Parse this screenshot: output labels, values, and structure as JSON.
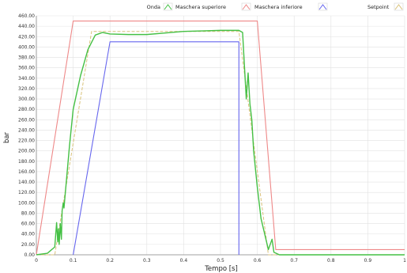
{
  "chart_data": {
    "type": "line",
    "xlabel": "Tempo [s]",
    "ylabel": "bar",
    "xlim": [
      0,
      1
    ],
    "ylim": [
      0,
      460
    ],
    "x_ticks": [
      "0",
      "0.1",
      "0.2",
      "0.3",
      "0.4",
      "0.5",
      "0.6",
      "0.7",
      "0.8",
      "0.9",
      "1"
    ],
    "y_ticks": [
      "0.00",
      "20.00",
      "40.00",
      "60.00",
      "80.00",
      "100.00",
      "120.00",
      "140.00",
      "160.00",
      "180.00",
      "200.00",
      "220.00",
      "240.00",
      "260.00",
      "280.00",
      "300.00",
      "320.00",
      "340.00",
      "360.00",
      "380.00",
      "400.00",
      "420.00",
      "440.00",
      "460.00"
    ],
    "grid": true,
    "legend_position": "top-right",
    "legend_title": "Onda",
    "series": [
      {
        "name": "Maschera superiore",
        "color": "#ee8888",
        "x": [
          0,
          0.1,
          0.6,
          0.65,
          1.0
        ],
        "y": [
          0,
          450,
          450,
          10,
          10
        ]
      },
      {
        "name": "Maschera inferiore",
        "color": "#6666ee",
        "x": [
          0.1,
          0.2,
          0.55,
          0.55
        ],
        "y": [
          0,
          410,
          410,
          0
        ]
      },
      {
        "name": "Setpoint",
        "color": "#d9c27a",
        "x": [
          0,
          0.05,
          0.15,
          0.55,
          0.63,
          1.0
        ],
        "y": [
          0,
          0,
          430,
          430,
          0,
          0
        ]
      },
      {
        "name": "",
        "color": "#44c044",
        "x": [
          0,
          0.03,
          0.05,
          0.055,
          0.058,
          0.06,
          0.062,
          0.065,
          0.068,
          0.07,
          0.073,
          0.075,
          0.08,
          0.09,
          0.1,
          0.12,
          0.14,
          0.16,
          0.18,
          0.2,
          0.25,
          0.3,
          0.35,
          0.4,
          0.45,
          0.5,
          0.55,
          0.56,
          0.57,
          0.575,
          0.58,
          0.585,
          0.59,
          0.6,
          0.61,
          0.62,
          0.63,
          0.64,
          0.645,
          0.66,
          0.7,
          0.8,
          0.9,
          1.0
        ],
        "y": [
          0,
          3,
          15,
          62,
          25,
          50,
          20,
          60,
          30,
          85,
          100,
          90,
          130,
          210,
          280,
          345,
          395,
          423,
          428,
          425,
          424,
          424,
          427,
          430,
          431,
          432,
          432,
          428,
          300,
          350,
          290,
          260,
          200,
          130,
          70,
          40,
          10,
          30,
          5,
          0,
          0,
          0,
          0,
          0
        ]
      }
    ]
  }
}
